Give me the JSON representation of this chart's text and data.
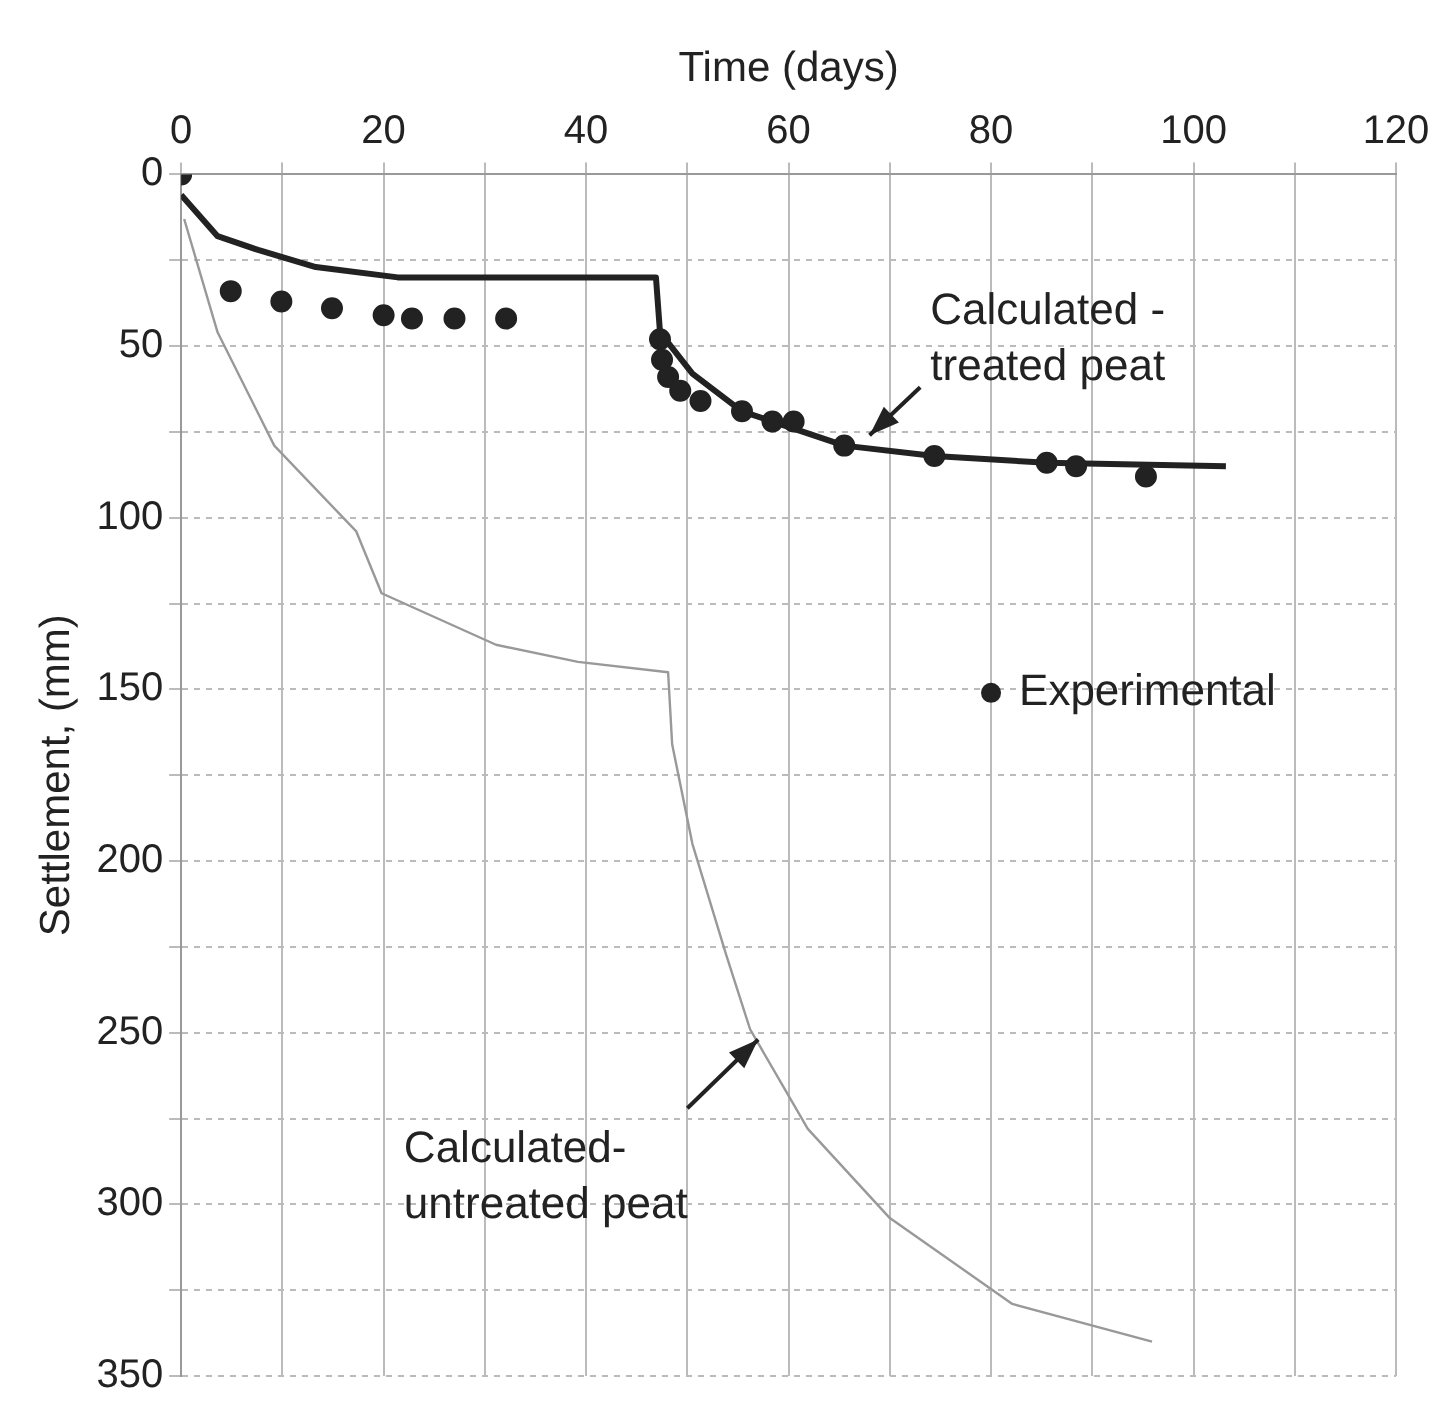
{
  "chart_data": {
    "type": "scatter",
    "xlabel": "Time (days)",
    "ylabel": "Settlement, (mm)",
    "xlim": [
      0,
      120
    ],
    "xticks": [
      0,
      {
        "value": 10,
        "label": null
      },
      20,
      {
        "value": 30,
        "label": null
      },
      40,
      {
        "value": 50,
        "label": null
      },
      60,
      {
        "value": 70,
        "label": null
      },
      80,
      {
        "value": 90,
        "label": null
      },
      100,
      {
        "value": 110,
        "label": null
      },
      120
    ],
    "ylim": [
      350,
      0
    ],
    "yticks": [
      0,
      {
        "value": 25,
        "label": null
      },
      50,
      {
        "value": 75,
        "label": null
      },
      100,
      {
        "value": 125,
        "label": null
      },
      150,
      {
        "value": 175,
        "label": null
      },
      200,
      {
        "value": 225,
        "label": null
      },
      250,
      {
        "value": 275,
        "label": null
      },
      300,
      {
        "value": 325,
        "label": null
      },
      350
    ],
    "grid": true,
    "legend": "right",
    "series": [
      {
        "name": "Experimental",
        "color": "#222222",
        "marker": "circle",
        "x": [
          0,
          4.9,
          9.9,
          14.9,
          20,
          22.8,
          27,
          32.1,
          47.3,
          47.5,
          48.1,
          49.3,
          51.3,
          55.4,
          58.4,
          60.5,
          65.5,
          74.4,
          85.5,
          88.4,
          95.3
        ],
        "values": [
          0,
          34,
          37,
          39,
          41,
          42,
          42,
          42,
          48,
          54,
          59,
          63,
          66,
          69,
          72,
          72,
          79,
          82,
          84,
          85,
          88
        ]
      },
      {
        "name": "Calculated - treated peat",
        "type": "line",
        "color": "#222222",
        "marker": "none",
        "x": [
          0,
          3.6,
          7.6,
          13.3,
          21.4,
          29.5,
          46.9,
          47.3,
          50.5,
          55.4,
          65.5,
          74.4,
          85.5,
          103.2
        ],
        "values": [
          6,
          18,
          22,
          27,
          30,
          30,
          30,
          46,
          58,
          69,
          79,
          82,
          84,
          85
        ]
      },
      {
        "name": "Calculated-untreated peat",
        "type": "line",
        "color": "#999999",
        "marker": "none",
        "x": [
          0.3,
          3.6,
          9.2,
          17.3,
          19.8,
          31.1,
          39.2,
          48.1,
          48.5,
          50.5,
          53.8,
          56.2,
          61.9,
          70,
          82.1,
          95.9
        ],
        "values": [
          13,
          46,
          79,
          104,
          122,
          137,
          142,
          145,
          166,
          195,
          227,
          249,
          278,
          304,
          329,
          340
        ]
      }
    ]
  }
}
